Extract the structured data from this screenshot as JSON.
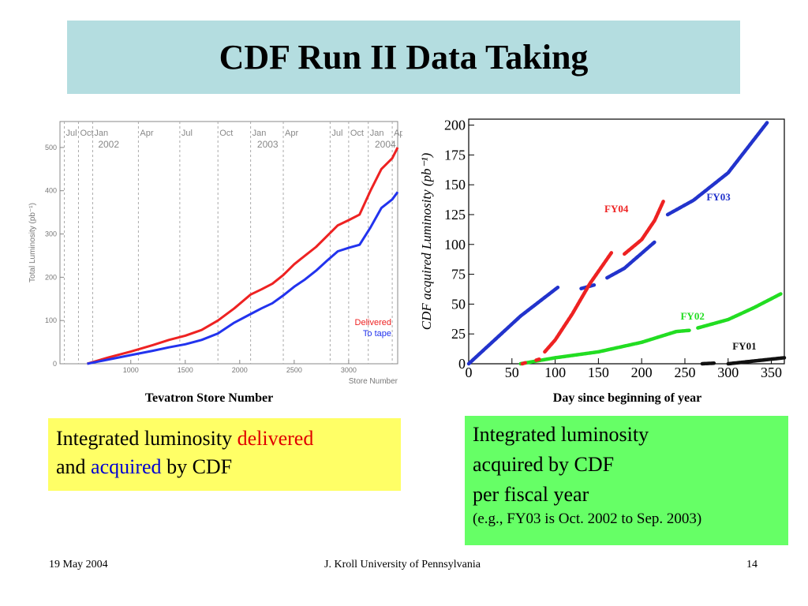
{
  "slide": {
    "title": "CDF Run II Data Taking",
    "footer_left": "19 May 2004",
    "footer_center": "J. Kroll University of Pennsylvania",
    "footer_right": "14"
  },
  "left_caption": "Tevatron Store Number",
  "right_caption": "Day since beginning of year",
  "yellow_box": {
    "text1": "Integrated luminosity ",
    "delivered": "delivered",
    "text2": "and ",
    "acquired": "acquired",
    "text3": " by CDF",
    "delivered_color": "#e00000",
    "acquired_color": "#0000d0"
  },
  "green_box": {
    "line1": "Integrated luminosity",
    "line2": "acquired by CDF",
    "line3": "per fiscal year",
    "line4": "(e.g., FY03 is Oct. 2002 to Sep. 2003)"
  },
  "chart_data": [
    {
      "type": "line",
      "xlabel": "Store Number",
      "ylabel": "Total Luminosity (pb⁻¹)",
      "xlim": [
        350,
        3450
      ],
      "ylim": [
        0,
        560
      ],
      "xticks": [
        1000,
        1500,
        2000,
        2500,
        3000
      ],
      "yticks": [
        0,
        100,
        200,
        300,
        400,
        500
      ],
      "months": [
        {
          "label": "Jul",
          "x": 390
        },
        {
          "label": "Oct",
          "x": 520
        },
        {
          "label": "Jan",
          "x": 650
        },
        {
          "label": "Apr",
          "x": 1070
        },
        {
          "label": "Jul",
          "x": 1450
        },
        {
          "label": "Oct",
          "x": 1800
        },
        {
          "label": "Jan",
          "x": 2100
        },
        {
          "label": "Apr",
          "x": 2400
        },
        {
          "label": "Jul",
          "x": 2830
        },
        {
          "label": "Oct",
          "x": 3000
        },
        {
          "label": "Jan",
          "x": 3180
        },
        {
          "label": "Apr",
          "x": 3400
        }
      ],
      "years": [
        {
          "label": "2002",
          "x": 700
        },
        {
          "label": "2003",
          "x": 2160
        },
        {
          "label": "2004",
          "x": 3240
        }
      ],
      "series": [
        {
          "name": "Delivered",
          "color": "#ee2222",
          "x": [
            600,
            800,
            1000,
            1200,
            1350,
            1500,
            1650,
            1800,
            1950,
            2100,
            2200,
            2300,
            2400,
            2500,
            2600,
            2700,
            2800,
            2900,
            3000,
            3100,
            3200,
            3300,
            3400,
            3450
          ],
          "y": [
            0,
            15,
            28,
            43,
            55,
            65,
            78,
            100,
            128,
            160,
            172,
            185,
            205,
            230,
            250,
            270,
            295,
            320,
            332,
            345,
            400,
            450,
            475,
            500
          ]
        },
        {
          "name": "To tape",
          "color": "#2233ee",
          "x": [
            600,
            800,
            1000,
            1200,
            1350,
            1500,
            1650,
            1800,
            1950,
            2100,
            2200,
            2300,
            2400,
            2500,
            2600,
            2700,
            2800,
            2900,
            3000,
            3100,
            3200,
            3300,
            3400,
            3450
          ],
          "y": [
            0,
            10,
            20,
            30,
            38,
            45,
            55,
            70,
            95,
            115,
            128,
            140,
            158,
            178,
            195,
            215,
            238,
            260,
            268,
            275,
            315,
            360,
            380,
            397
          ]
        }
      ]
    },
    {
      "type": "scatter",
      "xlabel": "",
      "ylabel": "CDF acquired Luminosity (pb⁻¹)",
      "xlim": [
        0,
        365
      ],
      "ylim": [
        0,
        205
      ],
      "xticks": [
        0,
        50,
        100,
        150,
        200,
        250,
        300,
        350
      ],
      "yticks": [
        0,
        25,
        50,
        75,
        100,
        125,
        150,
        175,
        200
      ],
      "series": [
        {
          "name": "FY01",
          "color": "#111111",
          "label_pos": [
            305,
            12
          ],
          "segments": [
            {
              "x": [
                270,
                285
              ],
              "y": [
                0,
                0.5
              ]
            },
            {
              "x": [
                300,
                365
              ],
              "y": [
                0,
                5
              ]
            }
          ]
        },
        {
          "name": "FY02",
          "color": "#22dd22",
          "label_pos": [
            245,
            37
          ],
          "segments": [
            {
              "x": [
                60,
                100,
                150,
                200,
                240,
                255
              ],
              "y": [
                0,
                5,
                10,
                18,
                27,
                28
              ]
            },
            {
              "x": [
                265,
                300,
                330,
                362
              ],
              "y": [
                30,
                37,
                47,
                59
              ]
            }
          ]
        },
        {
          "name": "FY03",
          "color": "#2233cc",
          "label_pos": [
            275,
            137
          ],
          "segments": [
            {
              "x": [
                0,
                30,
                60,
                103
              ],
              "y": [
                0,
                20,
                40,
                64
              ]
            },
            {
              "x": [
                130,
                145
              ],
              "y": [
                63,
                66
              ]
            },
            {
              "x": [
                160,
                180,
                215
              ],
              "y": [
                72,
                80,
                102
              ]
            },
            {
              "x": [
                230,
                260,
                300,
                345
              ],
              "y": [
                125,
                137,
                160,
                202
              ]
            }
          ]
        },
        {
          "name": "FY04",
          "color": "#ee2222",
          "label_pos": [
            157,
            127
          ],
          "segments": [
            {
              "x": [
                62,
                66
              ],
              "y": [
                0,
                1
              ]
            },
            {
              "x": [
                78,
                82
              ],
              "y": [
                3,
                4
              ]
            },
            {
              "x": [
                88,
                100,
                120,
                140,
                165
              ],
              "y": [
                10,
                20,
                42,
                67,
                93
              ]
            },
            {
              "x": [
                180,
                200,
                215,
                225
              ],
              "y": [
                92,
                104,
                120,
                136
              ]
            }
          ]
        }
      ]
    }
  ]
}
